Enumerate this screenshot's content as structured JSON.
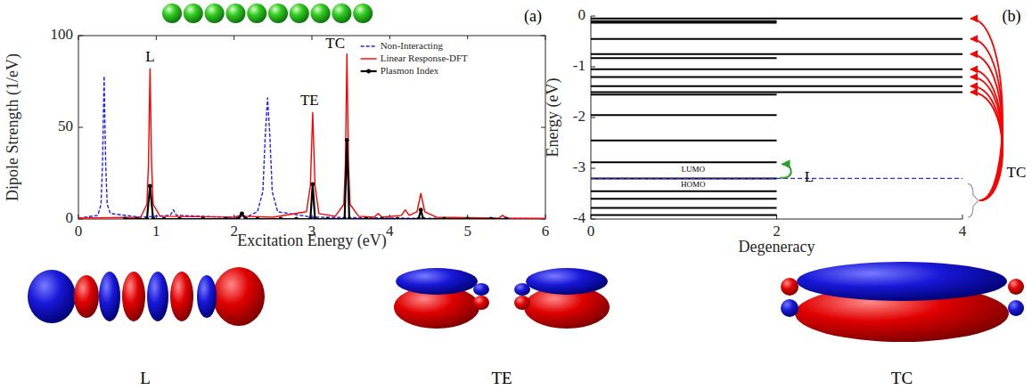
{
  "chart_data": [
    {
      "type": "line",
      "panel": "(a)",
      "xlabel": "Excitation Energy (eV)",
      "ylabel": "Dipole Strength (1/eV)",
      "xlim": [
        0,
        6
      ],
      "xticks": [
        0,
        1,
        2,
        3,
        4,
        5,
        6
      ],
      "ylim": [
        0,
        100
      ],
      "yticks": [
        0,
        50,
        100
      ],
      "legend": "upper right",
      "series": [
        {
          "name": "Non-Interacting",
          "color": "#1f1fff",
          "line_style": "dashed",
          "x": [
            0,
            0.25,
            0.29,
            0.31,
            0.33,
            0.35,
            0.37,
            0.41,
            0.8,
            1.18,
            1.22,
            1.26,
            1.9,
            2.08,
            2.12,
            2.16,
            2.3,
            2.37,
            2.4,
            2.43,
            2.46,
            2.49,
            2.56,
            3,
            4,
            5,
            6
          ],
          "values": [
            0.5,
            2,
            8,
            30,
            78,
            30,
            8,
            3,
            1,
            2,
            5,
            2,
            1,
            1,
            2,
            1,
            4,
            15,
            45,
            66,
            45,
            15,
            4,
            1,
            0.5,
            0.3,
            0.3
          ]
        },
        {
          "name": "Linear Response-DFT",
          "color": "#ff0000",
          "line_style": "solid",
          "x": [
            0,
            0.8,
            0.88,
            0.9,
            0.92,
            0.94,
            0.96,
            1.05,
            2.0,
            2.08,
            2.1,
            2.12,
            2.5,
            2.93,
            2.98,
            3.01,
            3.04,
            3.09,
            3.3,
            3.41,
            3.43,
            3.45,
            3.47,
            3.49,
            3.6,
            3.8,
            3.85,
            3.9,
            4.15,
            4.2,
            4.25,
            4.35,
            4.4,
            4.45,
            4.6,
            5.4,
            5.45,
            5.5,
            6
          ],
          "values": [
            0.5,
            1,
            8,
            30,
            82,
            30,
            8,
            1.5,
            1,
            2,
            3,
            1.5,
            1,
            4,
            18,
            58,
            18,
            3,
            1.5,
            8,
            30,
            90,
            30,
            8,
            1.5,
            1,
            3,
            1,
            2,
            5,
            2,
            4,
            14,
            4,
            1,
            0.5,
            2,
            0.5,
            0.3
          ]
        },
        {
          "name": "Plasmon Index",
          "color": "#000000",
          "line_style": "solid",
          "marker": "dot",
          "x": [
            0.6,
            0.75,
            0.88,
            0.92,
            0.96,
            1.1,
            1.3,
            1.6,
            1.9,
            2.05,
            2.1,
            2.15,
            2.3,
            2.6,
            2.8,
            2.98,
            3.01,
            3.04,
            3.2,
            3.42,
            3.45,
            3.48,
            3.7,
            3.9,
            4.1,
            4.37,
            4.4,
            4.43,
            4.7,
            5.0,
            5.3,
            5.5
          ],
          "values": [
            0,
            0,
            0,
            18,
            0,
            0,
            0,
            0,
            0,
            0,
            3,
            0,
            0,
            0,
            0,
            0,
            19,
            0,
            0,
            0,
            43,
            0,
            0,
            0,
            0,
            0,
            5,
            0,
            0,
            0,
            0,
            0
          ]
        }
      ],
      "annotations": [
        {
          "text": "L",
          "x": 0.92,
          "y": 86
        },
        {
          "text": "TE",
          "x": 2.97,
          "y": 62
        },
        {
          "text": "TC",
          "x": 3.3,
          "y": 93
        }
      ]
    },
    {
      "type": "levels",
      "panel": "(b)",
      "xlabel": "Degeneracy",
      "ylabel": "Energy (eV)",
      "xlim": [
        0,
        4
      ],
      "xticks": [
        0,
        2,
        4
      ],
      "ylim": [
        -4,
        0
      ],
      "yticks": [
        0,
        -1,
        -2,
        -3,
        -4
      ],
      "levels": [
        {
          "energy": -0.05,
          "degeneracy": 4
        },
        {
          "energy": -0.1,
          "degeneracy": 2
        },
        {
          "energy": -0.13,
          "degeneracy": 2
        },
        {
          "energy": -0.45,
          "degeneracy": 4
        },
        {
          "energy": -0.75,
          "degeneracy": 4
        },
        {
          "energy": -0.83,
          "degeneracy": 2
        },
        {
          "energy": -1.05,
          "degeneracy": 4
        },
        {
          "energy": -1.2,
          "degeneracy": 4
        },
        {
          "energy": -1.38,
          "degeneracy": 4
        },
        {
          "energy": -1.5,
          "degeneracy": 4
        },
        {
          "energy": -1.55,
          "degeneracy": 2
        },
        {
          "energy": -1.95,
          "degeneracy": 2
        },
        {
          "energy": -2.45,
          "degeneracy": 2
        },
        {
          "energy": -2.88,
          "degeneracy": 2
        },
        {
          "energy": -3.2,
          "degeneracy": 2
        },
        {
          "energy": -3.45,
          "degeneracy": 2
        },
        {
          "energy": -3.6,
          "degeneracy": 2
        },
        {
          "energy": -3.78,
          "degeneracy": 2
        },
        {
          "energy": -3.92,
          "degeneracy": 2
        }
      ],
      "fermi_level": -3.2,
      "labels": [
        {
          "text": "LUMO",
          "x": 1.1,
          "y": -3.04
        },
        {
          "text": "HOMO",
          "x": 1.1,
          "y": -3.34
        }
      ],
      "annotations": [
        {
          "text": "L",
          "x": 2.35,
          "y": -3.2
        },
        {
          "text": "TC",
          "x": 4.58,
          "y": -3.1
        }
      ]
    }
  ],
  "isosurface_labels": [
    "L",
    "TE",
    "TC"
  ]
}
